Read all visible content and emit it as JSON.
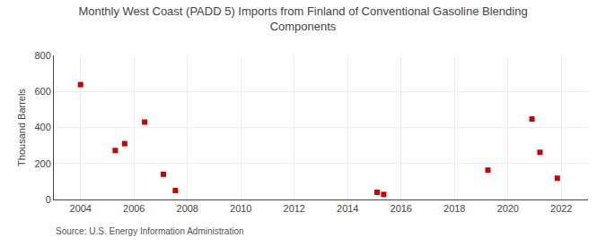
{
  "chart_data": {
    "type": "scatter",
    "title": "Monthly West Coast (PADD 5) Imports from Finland of Conventional Gasoline Blending\nComponents",
    "ylabel": "Thousand Barrels",
    "source": "Source: U.S. Energy Information Administration",
    "x": [
      2004.0,
      2005.3,
      2005.65,
      2006.4,
      2007.1,
      2007.55,
      2015.1,
      2015.35,
      2019.25,
      2020.9,
      2021.2,
      2021.85
    ],
    "values": [
      638,
      272,
      310,
      430,
      140,
      50,
      40,
      28,
      163,
      447,
      262,
      118
    ],
    "color": "#cc0000",
    "marker": "square",
    "xlim": [
      2003.0,
      2023.0
    ],
    "ylim": [
      0,
      800
    ],
    "xticks": [
      2004,
      2006,
      2008,
      2010,
      2012,
      2014,
      2016,
      2018,
      2020,
      2022
    ],
    "yticks": [
      0,
      200,
      400,
      600,
      800
    ],
    "grid": true
  }
}
